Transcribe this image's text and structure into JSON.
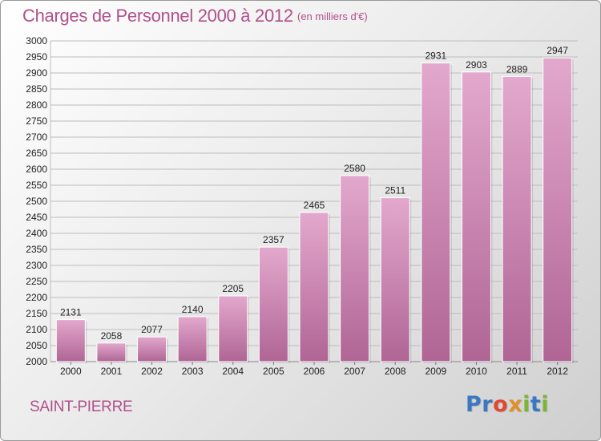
{
  "header": {
    "title": "Charges de Personnel 2000 à 2012",
    "unit": "(en milliers d'€)"
  },
  "location": "SAINT-PIERRE",
  "logo": {
    "text": "Proxiti",
    "letters": [
      {
        "char": "P",
        "color": "#3a78c2"
      },
      {
        "char": "r",
        "color": "#3a78c2"
      },
      {
        "char": "o",
        "color": "#e0492f"
      },
      {
        "char": "x",
        "color": "#e08f2a"
      },
      {
        "char": "i",
        "color": "#7bb535"
      },
      {
        "char": "t",
        "color": "#3a78c2"
      },
      {
        "char": "i",
        "color": "#7bb535"
      }
    ]
  },
  "colors": {
    "bar_top": "#e3a8cd",
    "bar_bottom": "#b06595",
    "grid": "#bdbdbd",
    "text_accent": "#b0508a"
  },
  "chart_data": {
    "type": "bar",
    "title": "Charges de Personnel 2000 à 2012",
    "subtitle": "(en milliers d'€)",
    "categories": [
      "2000",
      "2001",
      "2002",
      "2003",
      "2004",
      "2005",
      "2006",
      "2007",
      "2008",
      "2009",
      "2010",
      "2011",
      "2012"
    ],
    "values": [
      2131,
      2058,
      2077,
      2140,
      2205,
      2357,
      2465,
      2580,
      2511,
      2931,
      2903,
      2889,
      2947
    ],
    "ylim": [
      2000,
      3000
    ],
    "ytick_step": 50,
    "grid": true,
    "legend": "none"
  }
}
